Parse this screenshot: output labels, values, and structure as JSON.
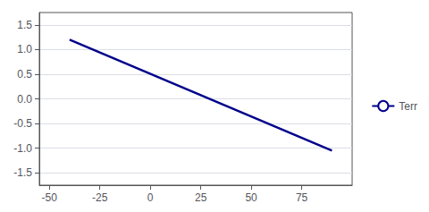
{
  "chart_data": {
    "type": "line",
    "x": [
      -40,
      90
    ],
    "series": [
      {
        "name": "Terr",
        "color": "#00008B",
        "values": [
          1.2,
          -1.05
        ]
      }
    ],
    "xlim": [
      -55,
      100
    ],
    "xticks": [
      -50,
      -25,
      0,
      25,
      50,
      75
    ],
    "ylim": [
      -1.75,
      1.75
    ],
    "yticks": [
      -1.5,
      {
        "value": -1.0,
        "label": "-1.0"
      },
      -0.5,
      {
        "value": 0.0,
        "label": "0.0"
      },
      0.5,
      {
        "value": 1.0,
        "label": "1.0"
      },
      1.5
    ],
    "grid": true,
    "legend": "right"
  }
}
